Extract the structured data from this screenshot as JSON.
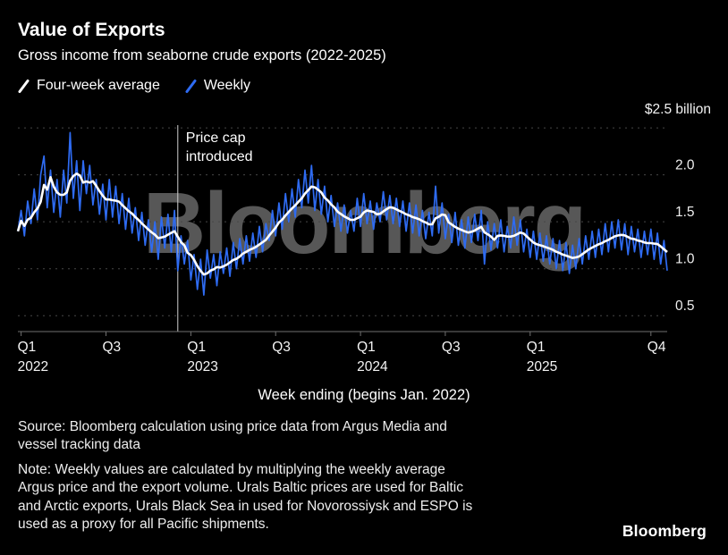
{
  "header": {
    "title": "Value of Exports",
    "subtitle": "Gross income from seaborne crude exports (2022-2025)"
  },
  "legend": {
    "items": [
      {
        "label": "Four-week average",
        "color": "#FFFFFF"
      },
      {
        "label": "Weekly",
        "color": "#2E6BF2"
      }
    ]
  },
  "watermark": "Bloomberg",
  "footer": {
    "source_lines": [
      "Source: Bloomberg calculation using price data from Argus Media and",
      "vessel tracking data"
    ],
    "note_lines": [
      "Note: Weekly values are calculated by multiplying the weekly average",
      "Argus price and the export volume. Urals Baltic prices are used for Baltic",
      "and Arctic exports, Urals Black Sea in used for Novorossiysk and ESPO is",
      "used as a proxy for all Pacific shipments."
    ]
  },
  "logo_text": "Bloomberg",
  "chart_data": {
    "type": "line",
    "title": "Value of Exports",
    "subtitle": "Gross income from seaborne crude exports (2022-2025)",
    "xlabel": "Week ending (begins Jan. 2022)",
    "ylabel": "$ billion",
    "background": "#000000",
    "grid": "horizontal dotted",
    "legend_position": "top-left",
    "x_unit": "weeks since Jan 2022",
    "n_weeks": 200,
    "ylim": [
      0.33,
      2.53
    ],
    "y_top_label": "$2.5 billion",
    "gridlines": [
      0.5,
      1.0,
      1.5,
      2.0,
      2.5
    ],
    "yticks": [
      {
        "value": 2.0,
        "label": "2.0"
      },
      {
        "value": 1.5,
        "label": "1.5"
      },
      {
        "value": 1.0,
        "label": "1.0"
      },
      {
        "value": 0.5,
        "label": "0.5"
      }
    ],
    "xticks": [
      {
        "week": 1,
        "quarter": "Q1",
        "year": "2022"
      },
      {
        "week": 27,
        "quarter": "Q3",
        "year": ""
      },
      {
        "week": 53,
        "quarter": "Q1",
        "year": "2023"
      },
      {
        "week": 79,
        "quarter": "Q3",
        "year": ""
      },
      {
        "week": 105,
        "quarter": "Q1",
        "year": "2024"
      },
      {
        "week": 131,
        "quarter": "Q3",
        "year": ""
      },
      {
        "week": 157,
        "quarter": "Q1",
        "year": "2025"
      },
      {
        "week": 194,
        "quarter": "Q4",
        "year": ""
      }
    ],
    "annotation": {
      "lines": [
        "Price cap",
        "introduced"
      ],
      "week": 49
    },
    "series": [
      {
        "name": "Weekly",
        "color": "#2E6BF2",
        "style": "thin",
        "values": [
          1.4,
          1.62,
          1.35,
          1.72,
          1.48,
          1.85,
          1.52,
          2.0,
          2.2,
          1.65,
          2.05,
          1.6,
          1.95,
          1.55,
          2.05,
          1.7,
          2.45,
          1.75,
          2.15,
          1.62,
          2.15,
          1.8,
          2.1,
          1.68,
          1.95,
          1.58,
          1.9,
          1.52,
          1.95,
          1.55,
          1.88,
          1.48,
          1.8,
          1.42,
          1.75,
          1.38,
          1.65,
          1.3,
          1.6,
          1.25,
          1.52,
          1.18,
          1.5,
          1.1,
          1.55,
          1.22,
          1.58,
          1.18,
          1.62,
          0.98,
          1.35,
          1.05,
          1.3,
          0.88,
          1.15,
          0.78,
          1.1,
          0.72,
          1.2,
          0.9,
          1.15,
          0.82,
          1.18,
          0.95,
          1.22,
          0.92,
          1.28,
          1.0,
          1.32,
          1.05,
          1.35,
          1.08,
          1.38,
          1.12,
          1.45,
          1.18,
          1.48,
          1.3,
          1.62,
          1.35,
          1.7,
          1.42,
          1.8,
          1.5,
          1.85,
          1.55,
          1.95,
          1.65,
          2.05,
          1.7,
          2.1,
          1.62,
          1.95,
          1.58,
          1.88,
          1.5,
          1.78,
          1.45,
          1.7,
          1.4,
          1.68,
          1.38,
          1.62,
          1.4,
          1.75,
          1.45,
          1.8,
          1.48,
          1.72,
          1.42,
          1.7,
          1.5,
          1.82,
          1.52,
          1.78,
          1.48,
          1.75,
          1.45,
          1.72,
          1.4,
          1.7,
          1.38,
          1.68,
          1.35,
          1.62,
          1.32,
          1.6,
          1.35,
          1.88,
          1.38,
          1.7,
          1.32,
          1.58,
          1.28,
          1.6,
          1.25,
          1.52,
          1.22,
          1.55,
          1.28,
          1.58,
          1.3,
          1.62,
          1.05,
          1.5,
          1.2,
          1.48,
          1.22,
          1.52,
          1.18,
          1.45,
          1.22,
          1.55,
          1.25,
          1.52,
          1.18,
          1.42,
          1.12,
          1.4,
          1.1,
          1.38,
          1.08,
          1.35,
          1.05,
          1.32,
          1.0,
          1.3,
          0.98,
          1.28,
          0.95,
          1.25,
          1.0,
          1.32,
          1.05,
          1.35,
          1.1,
          1.4,
          1.12,
          1.42,
          1.15,
          1.48,
          1.18,
          1.5,
          1.22,
          1.52,
          1.2,
          1.48,
          1.15,
          1.45,
          1.18,
          1.42,
          1.12,
          1.4,
          1.15,
          1.42,
          1.1,
          1.38,
          1.05,
          1.3,
          0.98
        ]
      },
      {
        "name": "Four-week average",
        "color": "#FFFFFF",
        "style": "thick",
        "derived_from": "Weekly",
        "transform": "4-week rolling mean"
      }
    ]
  }
}
